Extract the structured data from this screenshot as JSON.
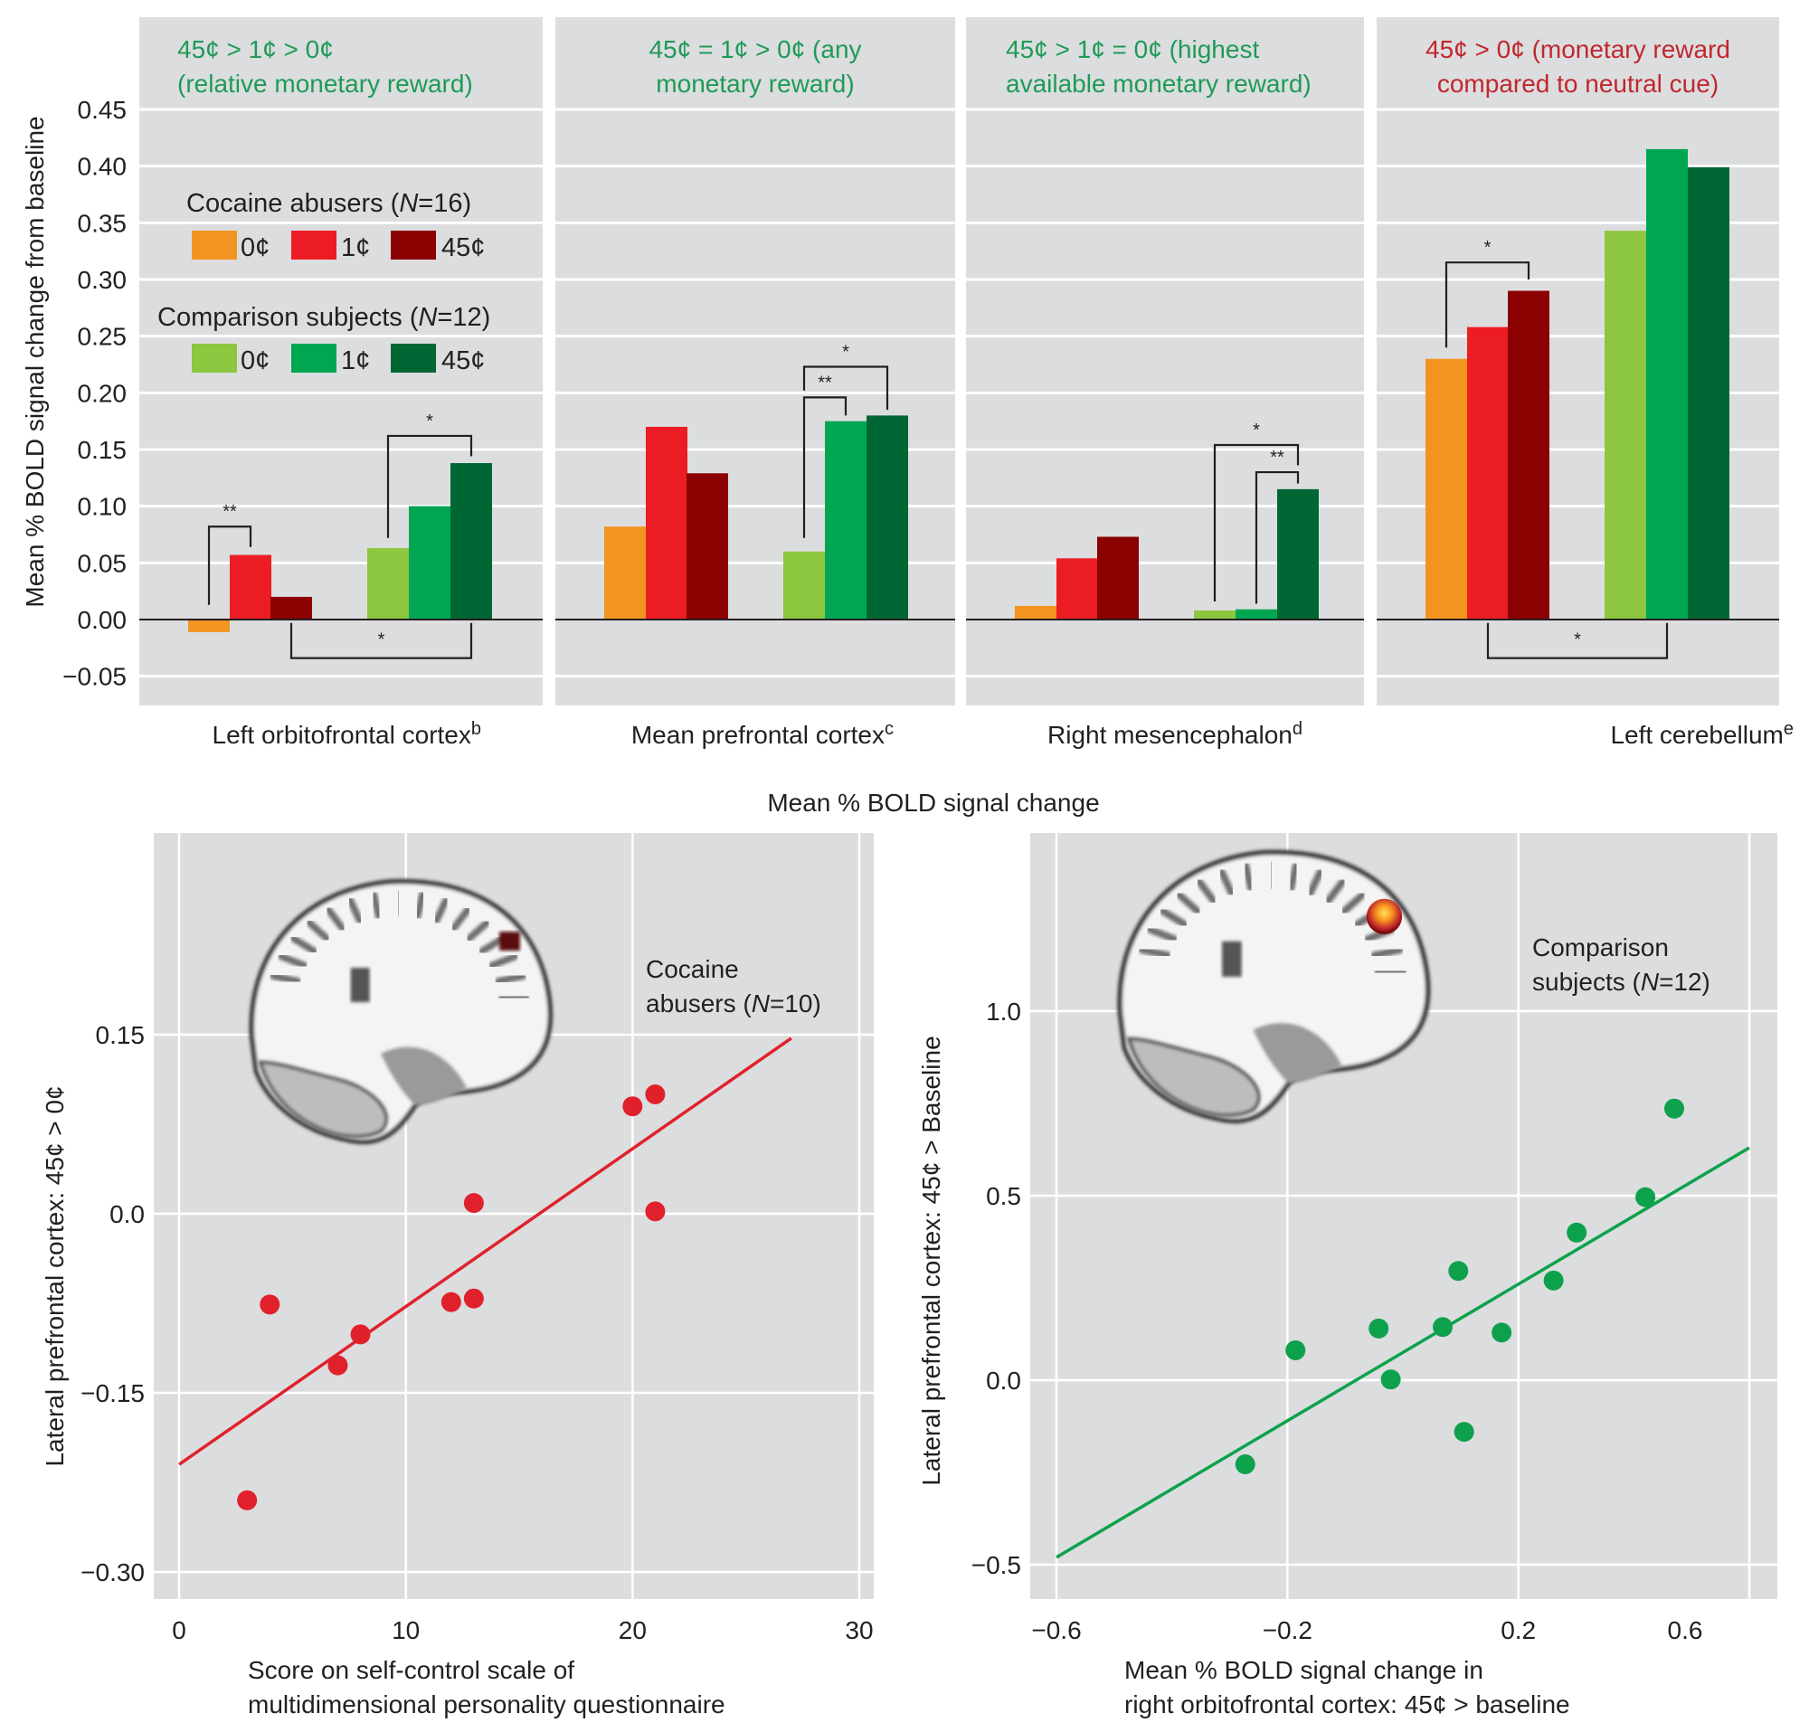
{
  "figure": {
    "top_ylabel": "Mean % BOLD signal change from baseline",
    "top_xlabel": "Mean % BOLD signal change"
  },
  "legend": {
    "cocaine_title": "Cocaine abusers (N = 16)",
    "cocaine_title_parts": [
      "Cocaine abusers (",
      "N",
      "=16)"
    ],
    "comparison_title_parts": [
      "Comparison subjects (",
      "N",
      "=12)"
    ],
    "comparison_title": "Comparison subjects (N = 12)",
    "labels": [
      "0¢",
      "1¢",
      "45¢"
    ],
    "cocaine_colors": [
      "#F39320",
      "#EC1C24",
      "#8B0000"
    ],
    "comparison_colors": [
      "#8DC63F",
      "#00A651",
      "#006633"
    ]
  },
  "colors": {
    "panel_bg": "#DCDDDF",
    "grid": "#FFFFFF",
    "contrast_green": "#1E9B57",
    "contrast_red": "#C1272D",
    "text": "#231F20",
    "scatter_red": "#E0212B",
    "scatter_green": "#0EA14B"
  },
  "chart_data": [
    {
      "type": "bar",
      "title": "Mean % BOLD signal change from baseline by region",
      "ylabel": "Mean % BOLD signal change from baseline",
      "xlabel": "Mean % BOLD signal change",
      "ylim": [
        -0.07,
        0.52
      ],
      "yticks": [
        0.45,
        0.4,
        0.35,
        0.3,
        0.25,
        0.2,
        0.15,
        0.1,
        0.05,
        0.0,
        -0.05
      ],
      "ytick_labels": [
        "0.45",
        "0.40",
        "0.35",
        "0.30",
        "0.25",
        "0.20",
        "0.15",
        "0.10",
        "0.05",
        "0.00",
        "−0.05"
      ],
      "grid": true,
      "legend_position": "top-left (inside first panel)",
      "groups": [
        "Cocaine abusers (N=16)",
        "Comparison subjects (N=12)"
      ],
      "conditions": [
        "0¢",
        "1¢",
        "45¢"
      ],
      "panels": [
        {
          "contrast_line1": "45¢ > 1¢ > 0¢",
          "contrast_line2": "(relative monetary reward)",
          "contrast_color": "green",
          "region": "Left orbitofrontal cortex",
          "region_sup": "b",
          "series": [
            {
              "name": "Cocaine abusers",
              "values": [
                -0.011,
                0.057,
                0.02
              ]
            },
            {
              "name": "Comparison subjects",
              "values": [
                0.063,
                0.1,
                0.138
              ]
            }
          ],
          "brackets": [
            {
              "from": 0,
              "to": 1,
              "level": 0.082,
              "from_end": 0.013,
              "to_end": 0.064,
              "label": "**"
            },
            {
              "from": 3,
              "to": 5,
              "level": 0.162,
              "from_end": 0.072,
              "to_end": 0.144,
              "label": "*"
            },
            {
              "from": 2,
              "to": 5,
              "level": -0.034,
              "from_end": -0.003,
              "to_end": -0.003,
              "label": "*",
              "below": true
            }
          ]
        },
        {
          "contrast_line1": "45¢ = 1¢ > 0¢ (any",
          "contrast_line2": "monetary reward)",
          "contrast_color": "green",
          "region": "Mean prefrontal cortex",
          "region_sup": "c",
          "series": [
            {
              "name": "Cocaine abusers",
              "values": [
                0.082,
                0.17,
                0.129
              ]
            },
            {
              "name": "Comparison subjects",
              "values": [
                0.06,
                0.175,
                0.18
              ]
            }
          ],
          "brackets": [
            {
              "from": 3,
              "to": 4,
              "level": 0.196,
              "from_end": 0.072,
              "to_end": 0.18,
              "label": "**"
            },
            {
              "from": 3,
              "to": 5,
              "level": 0.223,
              "from_end": 0.202,
              "to_end": 0.185,
              "label": "*"
            }
          ]
        },
        {
          "contrast_line1": "45¢ > 1¢ = 0¢ (highest",
          "contrast_line2": "available monetary reward)",
          "contrast_color": "green",
          "region": "Right mesencephalon",
          "region_sup": "d",
          "series": [
            {
              "name": "Cocaine abusers",
              "values": [
                0.012,
                0.054,
                0.073
              ]
            },
            {
              "name": "Comparison subjects",
              "values": [
                0.008,
                0.009,
                0.115
              ]
            }
          ],
          "brackets": [
            {
              "from": 4,
              "to": 5,
              "level": 0.13,
              "from_end": 0.014,
              "to_end": 0.12,
              "label": "**"
            },
            {
              "from": 3,
              "to": 5,
              "level": 0.154,
              "from_end": 0.016,
              "to_end": 0.136,
              "label": "*"
            }
          ]
        },
        {
          "contrast_line1": "45¢ > 0¢ (monetary reward",
          "contrast_line2": "compared to neutral cue)",
          "contrast_color": "red",
          "region": "Left cerebellum",
          "region_sup": "e",
          "series": [
            {
              "name": "Cocaine abusers",
              "values": [
                0.23,
                0.258,
                0.29
              ]
            },
            {
              "name": "Comparison subjects",
              "values": [
                0.343,
                0.415,
                0.399
              ]
            }
          ],
          "brackets": [
            {
              "from": 0,
              "to": 2,
              "level": 0.315,
              "from_end": 0.24,
              "to_end": 0.3,
              "label": "*"
            },
            {
              "from": 1,
              "to": 4,
              "level": -0.034,
              "from_end": -0.003,
              "to_end": -0.003,
              "label": "*",
              "below": true
            }
          ]
        }
      ]
    },
    {
      "type": "scatter",
      "title": "Cocaine abusers (N = 10)",
      "annotation_line1": "Cocaine",
      "annotation_line2_parts": [
        "abusers (",
        "N",
        "=10)"
      ],
      "xlabel_line1": "Score on self-control scale of",
      "xlabel_line2": "multidimensional personality questionnaire",
      "ylabel": "Lateral prefrontal cortex: 45¢ > 0¢",
      "xlim": [
        -2.2,
        30.8
      ],
      "ylim": [
        -0.323,
        0.324
      ],
      "xticks": [
        0,
        10,
        20,
        30
      ],
      "xtick_labels": [
        "0",
        "10",
        "20",
        "30"
      ],
      "yticks": [
        0.15,
        0.0,
        -0.15,
        -0.3
      ],
      "ytick_labels": [
        "0.15",
        "0.0",
        "−0.15",
        "−0.30"
      ],
      "grid": true,
      "points": [
        {
          "x": 3,
          "y": -0.24
        },
        {
          "x": 4,
          "y": -0.076
        },
        {
          "x": 7,
          "y": -0.127
        },
        {
          "x": 8,
          "y": -0.101
        },
        {
          "x": 12,
          "y": -0.074
        },
        {
          "x": 13,
          "y": -0.071
        },
        {
          "x": 13,
          "y": 0.009
        },
        {
          "x": 20,
          "y": 0.09
        },
        {
          "x": 21,
          "y": 0.1
        },
        {
          "x": 21,
          "y": 0.002
        }
      ],
      "fit_line": {
        "x": [
          0,
          27
        ],
        "y": [
          -0.21,
          0.147
        ]
      }
    },
    {
      "type": "scatter",
      "title": "Comparison subjects (N = 12)",
      "annotation_line1": "Comparison",
      "annotation_line2_parts": [
        "subjects (",
        "N",
        "=12)"
      ],
      "xlabel_line1": "Mean % BOLD signal change in",
      "xlabel_line2": "right orbitofrontal cortex: 45¢ > baseline",
      "ylabel": "Lateral prefrontal cortex: 45¢ > Baseline",
      "xlim": [
        -0.645,
        0.645
      ],
      "ylim": [
        -0.58,
        1.49
      ],
      "xticks": [
        -0.6,
        -0.2,
        0.2,
        0.6
      ],
      "xtick_labels": [
        "−0.6",
        "−0.2",
        "0.2",
        "0.6"
      ],
      "yticks": [
        1.0,
        0.5,
        0.0,
        -0.5
      ],
      "ytick_labels": [
        "1.0",
        "0.5",
        "0.0",
        "−0.5"
      ],
      "grid": true,
      "points": [
        {
          "x": -0.273,
          "y": -0.228
        },
        {
          "x": -0.186,
          "y": 0.081
        },
        {
          "x": -0.042,
          "y": 0.14
        },
        {
          "x": -0.021,
          "y": 0.002
        },
        {
          "x": 0.069,
          "y": 0.144
        },
        {
          "x": 0.096,
          "y": 0.296
        },
        {
          "x": 0.106,
          "y": -0.14
        },
        {
          "x": 0.171,
          "y": 0.129
        },
        {
          "x": 0.261,
          "y": 0.27
        },
        {
          "x": 0.301,
          "y": 0.4
        },
        {
          "x": 0.42,
          "y": 0.496
        },
        {
          "x": 0.47,
          "y": 0.736
        }
      ],
      "fit_line": {
        "x": [
          -0.6,
          0.6
        ],
        "y": [
          -0.48,
          0.63
        ]
      }
    }
  ],
  "images": {
    "left_brain": "sagittal brain MRI slice with dark-red activation in lateral prefrontal cortex",
    "right_brain": "sagittal brain MRI slice with orange-yellow activation in lateral prefrontal cortex"
  }
}
